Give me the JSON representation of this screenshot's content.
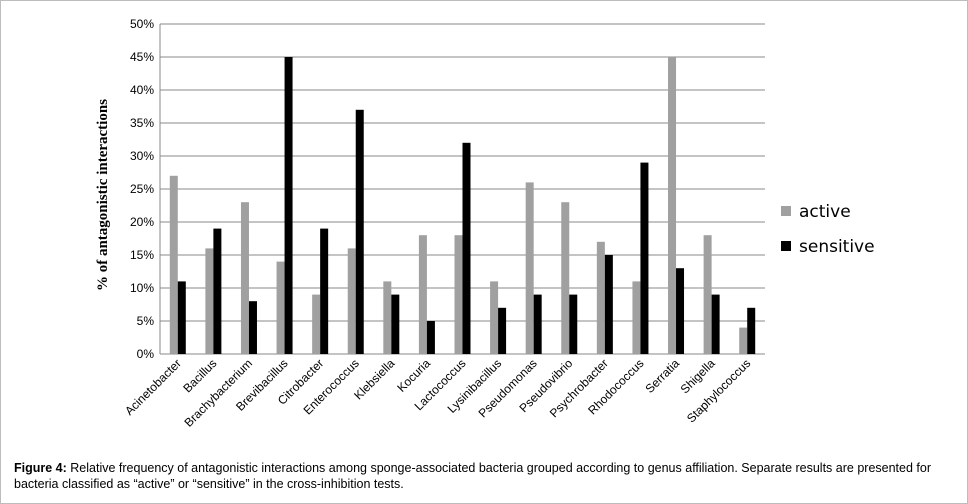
{
  "chart_data": {
    "type": "bar",
    "title": "",
    "xlabel": "",
    "ylabel": "% of antagonistic interactions",
    "ylim": [
      0,
      50
    ],
    "ytick_step": 5,
    "ytick_suffix": "%",
    "grid": true,
    "legend_position": "right",
    "categories": [
      "Acinetobacter",
      "Bacillus",
      "Brachybacterium",
      "Brevibacillus",
      "Citrobacter",
      "Enterococcus",
      "Klebsiella",
      "Kocuria",
      "Lactococcus",
      "Lysinibacillus",
      "Pseudomonas",
      "Pseudovibrio",
      "Psychrobacter",
      "Rhodococcus",
      "Serratia",
      "Shigella",
      "Staphylococcus"
    ],
    "series": [
      {
        "name": "active",
        "color": "#a0a0a0",
        "values": [
          27,
          16,
          23,
          14,
          9,
          16,
          11,
          18,
          18,
          11,
          26,
          23,
          17,
          11,
          45,
          18,
          4
        ]
      },
      {
        "name": "sensitive",
        "color": "#000000",
        "values": [
          11,
          19,
          8,
          45,
          19,
          37,
          9,
          5,
          32,
          7,
          9,
          9,
          15,
          29,
          13,
          9,
          7
        ]
      }
    ]
  },
  "caption": {
    "label": "Figure 4:",
    "text": " Relative frequency of antagonistic interactions among sponge-associated bacteria grouped according to genus affiliation. Separate results are presented for bacteria classified as “active” or “sensitive” in the cross-inhibition tests."
  }
}
